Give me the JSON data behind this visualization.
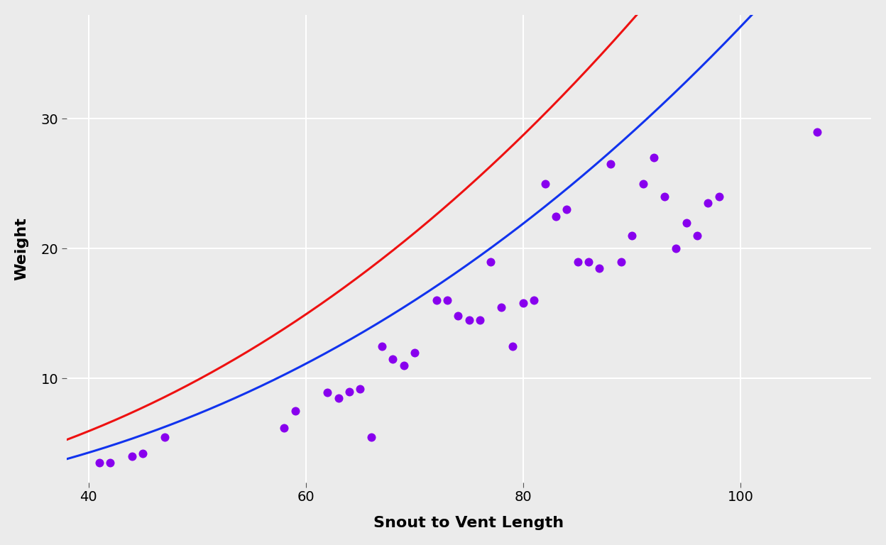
{
  "scatter_x": [
    41,
    42,
    44,
    45,
    47,
    58,
    59,
    62,
    63,
    64,
    65,
    66,
    67,
    68,
    69,
    70,
    72,
    73,
    74,
    75,
    76,
    77,
    78,
    79,
    80,
    81,
    82,
    83,
    84,
    85,
    86,
    87,
    88,
    89,
    90,
    91,
    92,
    93,
    94,
    95,
    96,
    97,
    98,
    107
  ],
  "scatter_y": [
    3.5,
    3.5,
    4.0,
    4.2,
    5.5,
    6.2,
    7.5,
    8.9,
    8.5,
    9.0,
    9.2,
    5.5,
    12.5,
    11.5,
    11.0,
    12.0,
    16.0,
    16.0,
    14.8,
    14.5,
    14.5,
    19.0,
    15.5,
    12.5,
    15.8,
    16.0,
    25.0,
    22.5,
    23.0,
    19.0,
    19.0,
    18.5,
    26.5,
    19.0,
    21.0,
    25.0,
    27.0,
    24.0,
    20.0,
    22.0,
    21.0,
    23.5,
    24.0,
    29.0
  ],
  "red_a": 0.00134,
  "red_b": 2.276,
  "blue_a": 0.00072,
  "blue_b": 2.356,
  "xlim": [
    38,
    112
  ],
  "ylim": [
    2,
    38
  ],
  "xlabel": "Snout to Vent Length",
  "ylabel": "Weight",
  "dot_color": "#8800EE",
  "red_color": "#EE1111",
  "blue_color": "#1133EE",
  "bg_color": "#EBEBEB",
  "grid_color": "#FFFFFF",
  "xticks": [
    40,
    60,
    80,
    100
  ],
  "yticks": [
    10,
    20,
    30
  ],
  "label_fontsize": 16,
  "tick_fontsize": 14,
  "dot_size": 75
}
